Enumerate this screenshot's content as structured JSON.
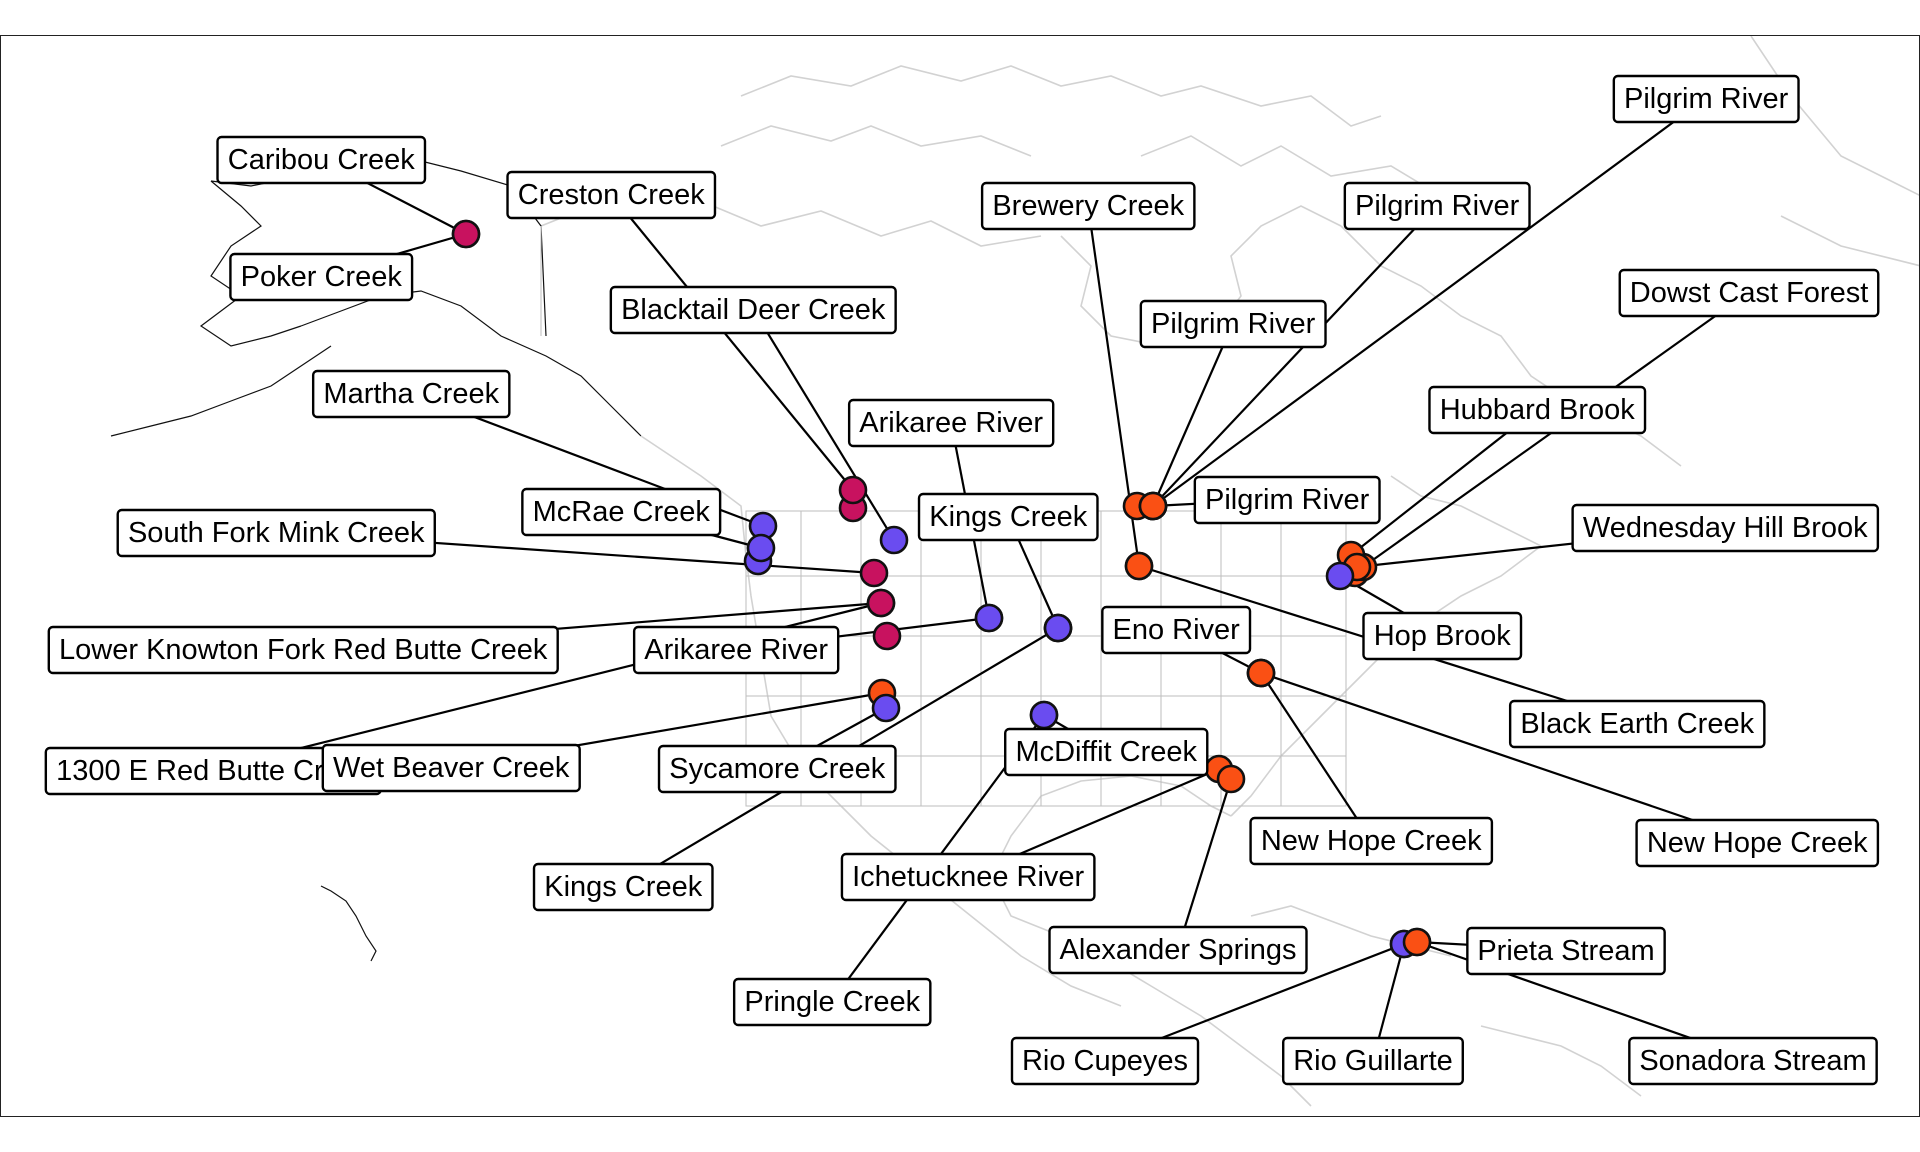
{
  "title": "",
  "legend": [],
  "colors": {
    "site_purple": "#6a4cf0",
    "site_orange": "#fa5014",
    "site_magenta": "#c8125f",
    "basemap": "#d2d2d2"
  },
  "sites": [
    {
      "id": "caribou",
      "label": "Caribou Creek",
      "color": "magenta"
    },
    {
      "id": "poker",
      "label": "Poker Creek",
      "color": "magenta"
    },
    {
      "id": "creston",
      "label": "Creston Creek",
      "color": "magenta"
    },
    {
      "id": "blacktail",
      "label": "Blacktail Deer Creek",
      "color": "purple"
    },
    {
      "id": "martha",
      "label": "Martha Creek",
      "color": "purple"
    },
    {
      "id": "mcrae",
      "label": "McRae Creek",
      "color": "purple"
    },
    {
      "id": "sfmink",
      "label": "South Fork Mink Creek",
      "color": "magenta"
    },
    {
      "id": "lkfrb",
      "label": "Lower Knowton Fork Red Butte Creek",
      "color": "magenta"
    },
    {
      "id": "arikaree1",
      "label": "Arikaree River",
      "color": "purple"
    },
    {
      "id": "arikaree2",
      "label": "Arikaree River",
      "color": "purple"
    },
    {
      "id": "e1300",
      "label": "1300 E Red Butte Creek",
      "color": "magenta"
    },
    {
      "id": "wetbeaver",
      "label": "Wet Beaver Creek",
      "color": "orange"
    },
    {
      "id": "sycamore",
      "label": "Sycamore Creek",
      "color": "purple"
    },
    {
      "id": "kings1",
      "label": "Kings Creek",
      "color": "purple"
    },
    {
      "id": "kings2",
      "label": "Kings Creek",
      "color": "purple"
    },
    {
      "id": "mcdiffit",
      "label": "McDiffit Creek",
      "color": "purple"
    },
    {
      "id": "pringle",
      "label": "Pringle Creek",
      "color": "purple"
    },
    {
      "id": "brewery",
      "label": "Brewery Creek",
      "color": "orange"
    },
    {
      "id": "pilgrim1",
      "label": "Pilgrim River",
      "color": "orange"
    },
    {
      "id": "pilgrim2",
      "label": "Pilgrim River",
      "color": "orange"
    },
    {
      "id": "pilgrim3",
      "label": "Pilgrim River",
      "color": "orange"
    },
    {
      "id": "pilgrim4",
      "label": "Pilgrim River",
      "color": "orange"
    },
    {
      "id": "dowst",
      "label": "Dowst Cast Forest",
      "color": "orange"
    },
    {
      "id": "hubbard",
      "label": "Hubbard Brook",
      "color": "orange"
    },
    {
      "id": "wedhill",
      "label": "Wednesday Hill Brook",
      "color": "orange"
    },
    {
      "id": "hop",
      "label": "Hop Brook",
      "color": "purple"
    },
    {
      "id": "eno",
      "label": "Eno River",
      "color": "orange"
    },
    {
      "id": "blackearth",
      "label": "Black Earth Creek",
      "color": "orange"
    },
    {
      "id": "newhope1",
      "label": "New Hope Creek",
      "color": "orange"
    },
    {
      "id": "newhope2",
      "label": "New Hope Creek",
      "color": "orange"
    },
    {
      "id": "ichetucknee",
      "label": "Ichetucknee River",
      "color": "orange"
    },
    {
      "id": "alexander",
      "label": "Alexander Springs",
      "color": "orange"
    },
    {
      "id": "prieta",
      "label": "Prieta Stream",
      "color": "orange"
    },
    {
      "id": "cupeyes",
      "label": "Rio Cupeyes",
      "color": "purple"
    },
    {
      "id": "guillarte",
      "label": "Rio Guillarte",
      "color": "purple"
    },
    {
      "id": "sonadora",
      "label": "Sonadora Stream",
      "color": "orange"
    }
  ]
}
